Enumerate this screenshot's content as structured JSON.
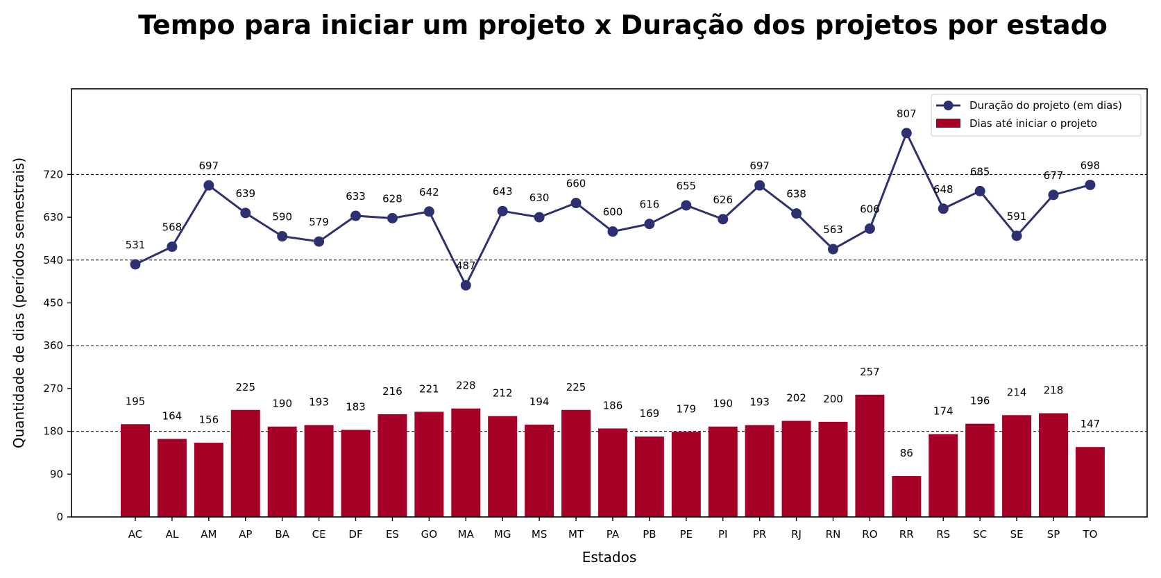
{
  "chart_data": {
    "type": "bar",
    "title": "Tempo para iniciar um projeto x Duração dos projetos por estado",
    "xlabel": "Estados",
    "ylabel": "Quantidade de dias (períodos semestrais)",
    "ylim": [
      0,
      900
    ],
    "yticks": [
      0,
      90,
      180,
      270,
      360,
      450,
      540,
      630,
      720
    ],
    "grid_lines": [
      180,
      360,
      540,
      720
    ],
    "legend_position": "top-right",
    "categories": [
      "AC",
      "AL",
      "AM",
      "AP",
      "BA",
      "CE",
      "DF",
      "ES",
      "GO",
      "MA",
      "MG",
      "MS",
      "MT",
      "PA",
      "PB",
      "PE",
      "PI",
      "PR",
      "RJ",
      "RN",
      "RO",
      "RR",
      "RS",
      "SC",
      "SE",
      "SP",
      "TO"
    ],
    "series": [
      {
        "name": "Duração do projeto (em dias)",
        "type": "line",
        "color": "#2e3171",
        "values": [
          531,
          568,
          697,
          639,
          590,
          579,
          633,
          628,
          642,
          487,
          643,
          630,
          660,
          600,
          616,
          655,
          626,
          697,
          638,
          563,
          606,
          807,
          648,
          685,
          591,
          677,
          698
        ]
      },
      {
        "name": "Dias até iniciar o projeto",
        "type": "bar",
        "color": "#a50026",
        "values": [
          195,
          164,
          156,
          225,
          190,
          193,
          183,
          216,
          221,
          228,
          212,
          194,
          225,
          186,
          169,
          179,
          190,
          193,
          202,
          200,
          257,
          86,
          174,
          196,
          214,
          218,
          147
        ]
      }
    ]
  }
}
